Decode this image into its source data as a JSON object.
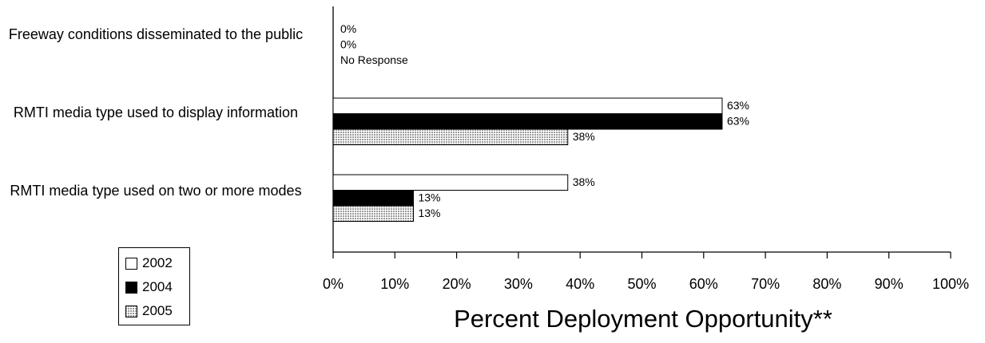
{
  "chart_data": {
    "type": "bar",
    "orientation": "horizontal",
    "categories": [
      "Freeway conditions disseminated to the public",
      "RMTI media type used to display information",
      "RMTI media type used on two or more modes"
    ],
    "series": [
      {
        "name": "2002",
        "values": [
          0,
          63,
          38
        ],
        "labels": [
          "0%",
          "63%",
          "38%"
        ],
        "color": "#ffffff"
      },
      {
        "name": "2004",
        "values": [
          0,
          63,
          13
        ],
        "labels": [
          "0%",
          "63%",
          "13%"
        ],
        "color": "#000000"
      },
      {
        "name": "2005",
        "values": [
          null,
          38,
          13
        ],
        "labels": [
          "No Response",
          "38%",
          "13%"
        ],
        "color": "#c8c8c8",
        "pattern": "dotted"
      }
    ],
    "xlabel": "Percent Deployment Opportunity**",
    "xlim": [
      0,
      100
    ],
    "xticks": [
      "0%",
      "10%",
      "20%",
      "30%",
      "40%",
      "50%",
      "60%",
      "70%",
      "80%",
      "90%",
      "100%"
    ],
    "legend_position": "bottom-left",
    "grid": false
  }
}
